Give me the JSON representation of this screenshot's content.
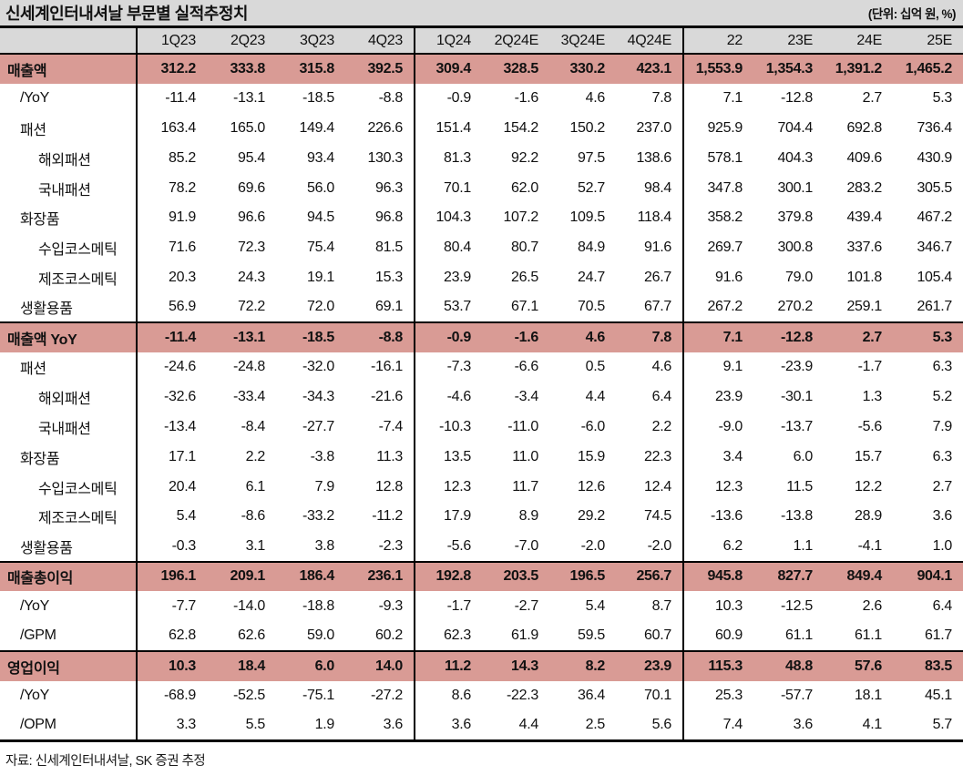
{
  "title": "신세계인터내셔날 부문별 실적추정치",
  "unit_note": "(단위: 십억 원, %)",
  "source_note": "자료: 신세계인터내셔날, SK 증권 추정",
  "colors": {
    "section_row_bg": "#d99b95",
    "header_bg": "#d9d9d9",
    "border": "#000000",
    "text": "#111111"
  },
  "table": {
    "columns": [
      "1Q23",
      "2Q23",
      "3Q23",
      "4Q23",
      "1Q24",
      "2Q24E",
      "3Q24E",
      "4Q24E",
      "22",
      "23E",
      "24E",
      "25E"
    ],
    "rows": [
      {
        "label": "매출액",
        "type": "section",
        "indent": 0,
        "values": [
          "312.2",
          "333.8",
          "315.8",
          "392.5",
          "309.4",
          "328.5",
          "330.2",
          "423.1",
          "1,553.9",
          "1,354.3",
          "1,391.2",
          "1,465.2"
        ]
      },
      {
        "label": "/YoY",
        "type": "data",
        "indent": 1,
        "values": [
          "-11.4",
          "-13.1",
          "-18.5",
          "-8.8",
          "-0.9",
          "-1.6",
          "4.6",
          "7.8",
          "7.1",
          "-12.8",
          "2.7",
          "5.3"
        ]
      },
      {
        "label": "패션",
        "type": "data",
        "indent": 1,
        "values": [
          "163.4",
          "165.0",
          "149.4",
          "226.6",
          "151.4",
          "154.2",
          "150.2",
          "237.0",
          "925.9",
          "704.4",
          "692.8",
          "736.4"
        ]
      },
      {
        "label": "해외패션",
        "type": "data",
        "indent": 2,
        "values": [
          "85.2",
          "95.4",
          "93.4",
          "130.3",
          "81.3",
          "92.2",
          "97.5",
          "138.6",
          "578.1",
          "404.3",
          "409.6",
          "430.9"
        ]
      },
      {
        "label": "국내패션",
        "type": "data",
        "indent": 2,
        "values": [
          "78.2",
          "69.6",
          "56.0",
          "96.3",
          "70.1",
          "62.0",
          "52.7",
          "98.4",
          "347.8",
          "300.1",
          "283.2",
          "305.5"
        ]
      },
      {
        "label": "화장품",
        "type": "data",
        "indent": 1,
        "values": [
          "91.9",
          "96.6",
          "94.5",
          "96.8",
          "104.3",
          "107.2",
          "109.5",
          "118.4",
          "358.2",
          "379.8",
          "439.4",
          "467.2"
        ]
      },
      {
        "label": "수입코스메틱",
        "type": "data",
        "indent": 2,
        "values": [
          "71.6",
          "72.3",
          "75.4",
          "81.5",
          "80.4",
          "80.7",
          "84.9",
          "91.6",
          "269.7",
          "300.8",
          "337.6",
          "346.7"
        ]
      },
      {
        "label": "제조코스메틱",
        "type": "data",
        "indent": 2,
        "values": [
          "20.3",
          "24.3",
          "19.1",
          "15.3",
          "23.9",
          "26.5",
          "24.7",
          "26.7",
          "91.6",
          "79.0",
          "101.8",
          "105.4"
        ]
      },
      {
        "label": "생활용품",
        "type": "data",
        "indent": 1,
        "values": [
          "56.9",
          "72.2",
          "72.0",
          "69.1",
          "53.7",
          "67.1",
          "70.5",
          "67.7",
          "267.2",
          "270.2",
          "259.1",
          "261.7"
        ]
      },
      {
        "label": "매출액 YoY",
        "type": "section",
        "indent": 0,
        "values": [
          "-11.4",
          "-13.1",
          "-18.5",
          "-8.8",
          "-0.9",
          "-1.6",
          "4.6",
          "7.8",
          "7.1",
          "-12.8",
          "2.7",
          "5.3"
        ]
      },
      {
        "label": "패션",
        "type": "data",
        "indent": 1,
        "values": [
          "-24.6",
          "-24.8",
          "-32.0",
          "-16.1",
          "-7.3",
          "-6.6",
          "0.5",
          "4.6",
          "9.1",
          "-23.9",
          "-1.7",
          "6.3"
        ]
      },
      {
        "label": "해외패션",
        "type": "data",
        "indent": 2,
        "values": [
          "-32.6",
          "-33.4",
          "-34.3",
          "-21.6",
          "-4.6",
          "-3.4",
          "4.4",
          "6.4",
          "23.9",
          "-30.1",
          "1.3",
          "5.2"
        ]
      },
      {
        "label": "국내패션",
        "type": "data",
        "indent": 2,
        "values": [
          "-13.4",
          "-8.4",
          "-27.7",
          "-7.4",
          "-10.3",
          "-11.0",
          "-6.0",
          "2.2",
          "-9.0",
          "-13.7",
          "-5.6",
          "7.9"
        ]
      },
      {
        "label": "화장품",
        "type": "data",
        "indent": 1,
        "values": [
          "17.1",
          "2.2",
          "-3.8",
          "11.3",
          "13.5",
          "11.0",
          "15.9",
          "22.3",
          "3.4",
          "6.0",
          "15.7",
          "6.3"
        ]
      },
      {
        "label": "수입코스메틱",
        "type": "data",
        "indent": 2,
        "values": [
          "20.4",
          "6.1",
          "7.9",
          "12.8",
          "12.3",
          "11.7",
          "12.6",
          "12.4",
          "12.3",
          "11.5",
          "12.2",
          "2.7"
        ]
      },
      {
        "label": "제조코스메틱",
        "type": "data",
        "indent": 2,
        "values": [
          "5.4",
          "-8.6",
          "-33.2",
          "-11.2",
          "17.9",
          "8.9",
          "29.2",
          "74.5",
          "-13.6",
          "-13.8",
          "28.9",
          "3.6"
        ]
      },
      {
        "label": "생활용품",
        "type": "data",
        "indent": 1,
        "values": [
          "-0.3",
          "3.1",
          "3.8",
          "-2.3",
          "-5.6",
          "-7.0",
          "-2.0",
          "-2.0",
          "6.2",
          "1.1",
          "-4.1",
          "1.0"
        ]
      },
      {
        "label": "매출총이익",
        "type": "section",
        "indent": 0,
        "values": [
          "196.1",
          "209.1",
          "186.4",
          "236.1",
          "192.8",
          "203.5",
          "196.5",
          "256.7",
          "945.8",
          "827.7",
          "849.4",
          "904.1"
        ]
      },
      {
        "label": "/YoY",
        "type": "data",
        "indent": 1,
        "values": [
          "-7.7",
          "-14.0",
          "-18.8",
          "-9.3",
          "-1.7",
          "-2.7",
          "5.4",
          "8.7",
          "10.3",
          "-12.5",
          "2.6",
          "6.4"
        ]
      },
      {
        "label": "/GPM",
        "type": "data",
        "indent": 1,
        "values": [
          "62.8",
          "62.6",
          "59.0",
          "60.2",
          "62.3",
          "61.9",
          "59.5",
          "60.7",
          "60.9",
          "61.1",
          "61.1",
          "61.7"
        ]
      },
      {
        "label": "영업이익",
        "type": "section",
        "indent": 0,
        "values": [
          "10.3",
          "18.4",
          "6.0",
          "14.0",
          "11.2",
          "14.3",
          "8.2",
          "23.9",
          "115.3",
          "48.8",
          "57.6",
          "83.5"
        ]
      },
      {
        "label": "/YoY",
        "type": "data",
        "indent": 1,
        "values": [
          "-68.9",
          "-52.5",
          "-75.1",
          "-27.2",
          "8.6",
          "-22.3",
          "36.4",
          "70.1",
          "25.3",
          "-57.7",
          "18.1",
          "45.1"
        ]
      },
      {
        "label": "/OPM",
        "type": "data",
        "indent": 1,
        "values": [
          "3.3",
          "5.5",
          "1.9",
          "3.6",
          "3.6",
          "4.4",
          "2.5",
          "5.6",
          "7.4",
          "3.6",
          "4.1",
          "5.7"
        ]
      }
    ]
  }
}
